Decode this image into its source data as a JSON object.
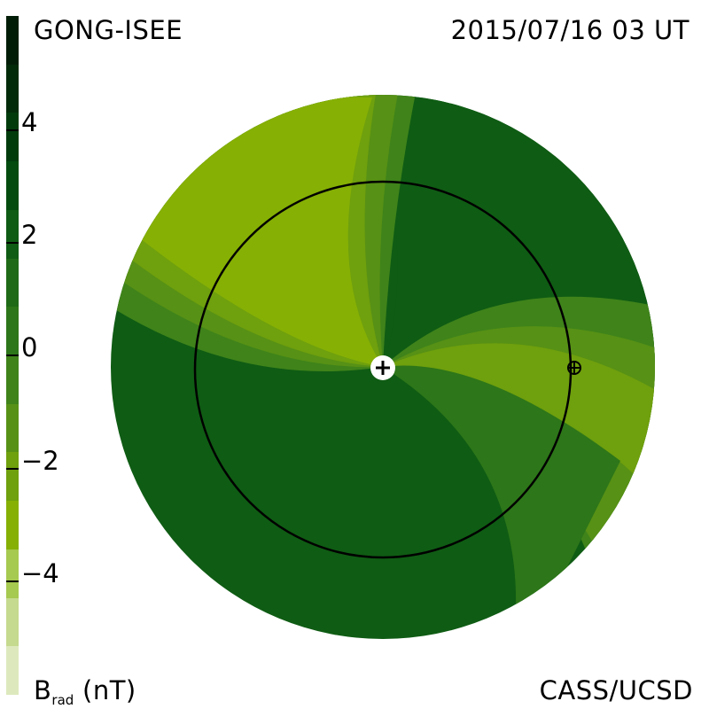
{
  "header": {
    "source": "GONG-ISEE",
    "timestamp": "2015/07/16 03 UT"
  },
  "footer": {
    "credit": "CASS/UCSD",
    "quantity": "B",
    "quantity_sub": "rad",
    "unit": " (nT)"
  },
  "colorbar": {
    "min": -6,
    "max": 6,
    "colors": [
      "#dde9bd",
      "#c5da8e",
      "#a6c94f",
      "#86b004",
      "#6fa00d",
      "#579115",
      "#3f831a",
      "#2d7619",
      "#1f6a17",
      "#0f5c14",
      "#034b0f",
      "#013b0c",
      "#022b09",
      "#021d07"
    ],
    "tick_labels": [
      "4",
      "2",
      "0",
      "−2",
      "−4"
    ],
    "tick_values": [
      4,
      2,
      0,
      -2,
      -4
    ]
  },
  "plot": {
    "disk_background": "#0f5c14",
    "markers": {
      "sun": "sun-marker",
      "earth": "earth-marker"
    }
  }
}
